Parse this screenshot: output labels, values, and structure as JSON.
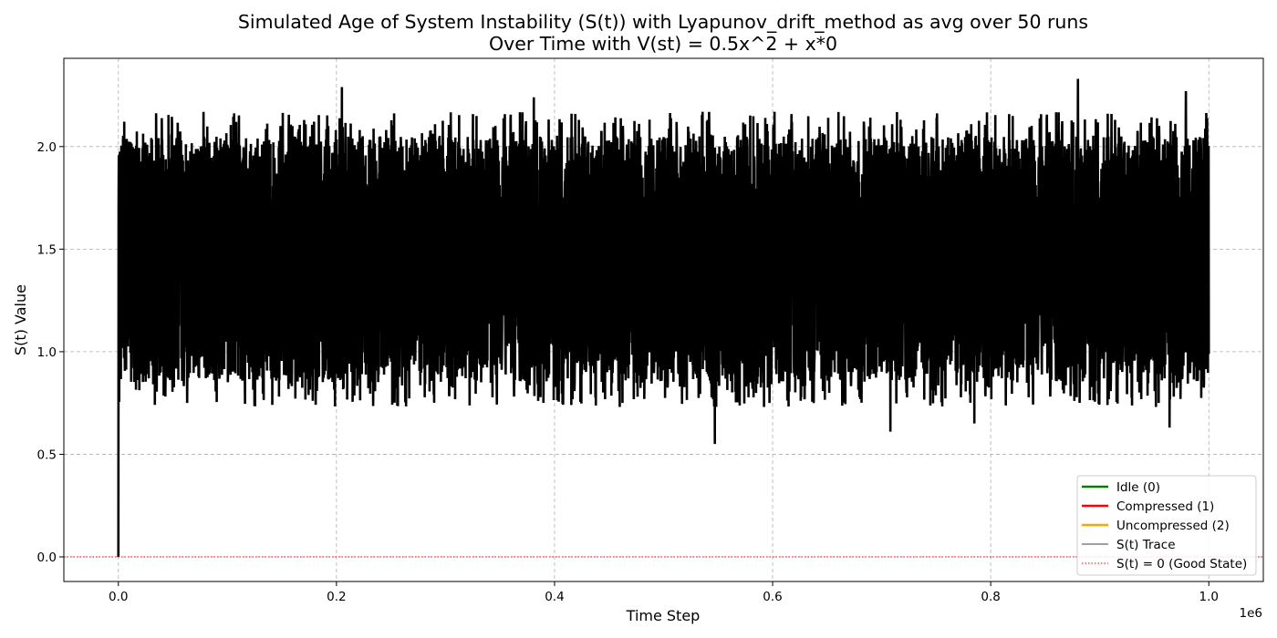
{
  "chart_data": {
    "type": "line",
    "title_lines": [
      "Simulated Age of System Instability (S(t)) with Lyapunov_drift_method as avg over 50 runs",
      "Over Time with V(st) = 0.5x^2 + x*0"
    ],
    "xlabel": "Time Step",
    "ylabel": "S(t) Value",
    "x_offset_label": "1e6",
    "xlim": [
      -0.05,
      1.05
    ],
    "ylim": [
      -0.12,
      2.43
    ],
    "x_ticks": [
      0.0,
      0.2,
      0.4,
      0.6,
      0.8,
      1.0
    ],
    "x_tick_labels": [
      "0.0",
      "0.2",
      "0.4",
      "0.6",
      "0.8",
      "1.0"
    ],
    "y_ticks": [
      0.0,
      0.5,
      1.0,
      1.5,
      2.0
    ],
    "y_tick_labels": [
      "0.0",
      "0.5",
      "1.0",
      "1.5",
      "2.0"
    ],
    "grid": true,
    "legend_position": "bottom-right",
    "legend": [
      {
        "label": "Idle (0)",
        "color": "#008000",
        "style": "solid"
      },
      {
        "label": "Compressed (1)",
        "color": "#ff0000",
        "style": "solid"
      },
      {
        "label": "Uncompressed (2)",
        "color": "#ffa500",
        "style": "solid"
      },
      {
        "label": "S(t) Trace",
        "color": "#000000",
        "style": "thin"
      },
      {
        "label": "S(t) = 0 (Good State)",
        "color": "#ff0000",
        "style": "dotted"
      }
    ],
    "series": {
      "x_range": [
        0.0,
        1.0
      ],
      "start_value": 0.0,
      "typical_band": [
        0.85,
        2.05
      ],
      "notable_values": [
        {
          "x": 0.547,
          "y": 0.55
        },
        {
          "x": 0.708,
          "y": 0.61
        },
        {
          "x": 0.785,
          "y": 0.65
        },
        {
          "x": 0.964,
          "y": 0.63
        },
        {
          "x": 0.88,
          "y": 2.33
        },
        {
          "x": 0.205,
          "y": 2.29
        },
        {
          "x": 0.979,
          "y": 2.27
        },
        {
          "x": 0.381,
          "y": 2.24
        }
      ]
    },
    "reference_line": {
      "y": 0.0,
      "color": "#ff0000"
    },
    "colors": {
      "trace": "#000000",
      "grid": "#b0b0b0",
      "legend_border": "#cccccc"
    }
  }
}
